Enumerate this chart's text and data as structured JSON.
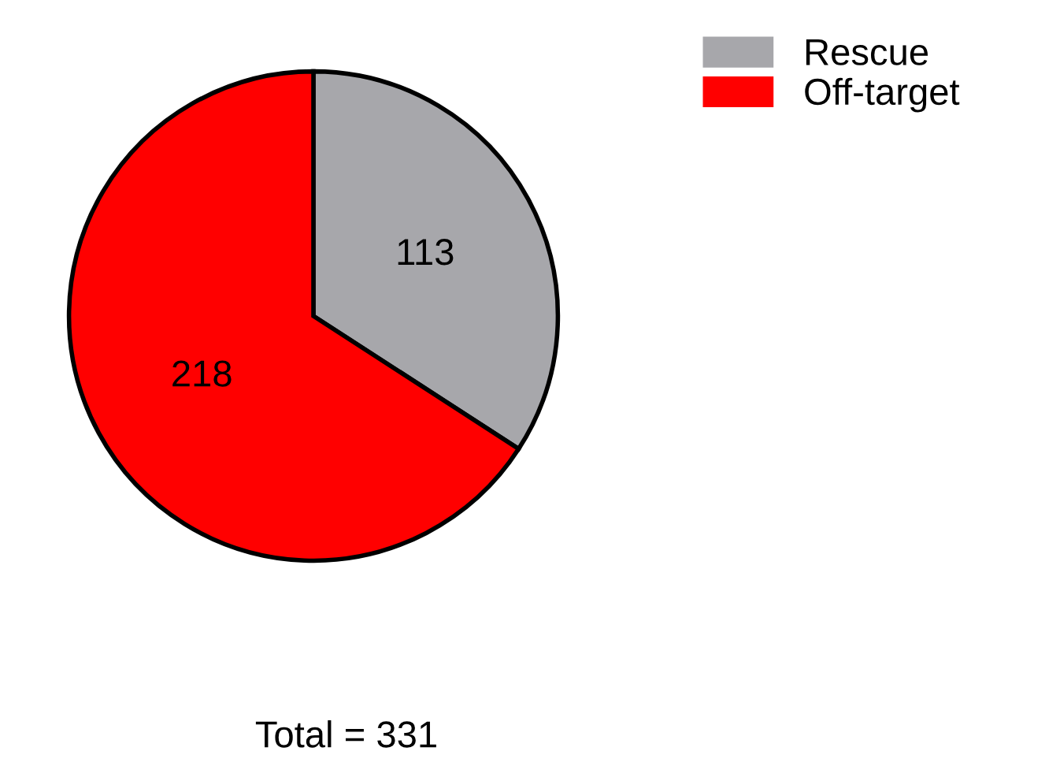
{
  "chart_data": {
    "type": "pie",
    "categories": [
      "Rescue",
      "Off-target"
    ],
    "values": [
      113,
      218
    ],
    "colors": [
      "#a7a7ab",
      "#ff0000"
    ],
    "data_labels": true,
    "legend": "top right",
    "annotations": [
      "Total = 331"
    ]
  }
}
